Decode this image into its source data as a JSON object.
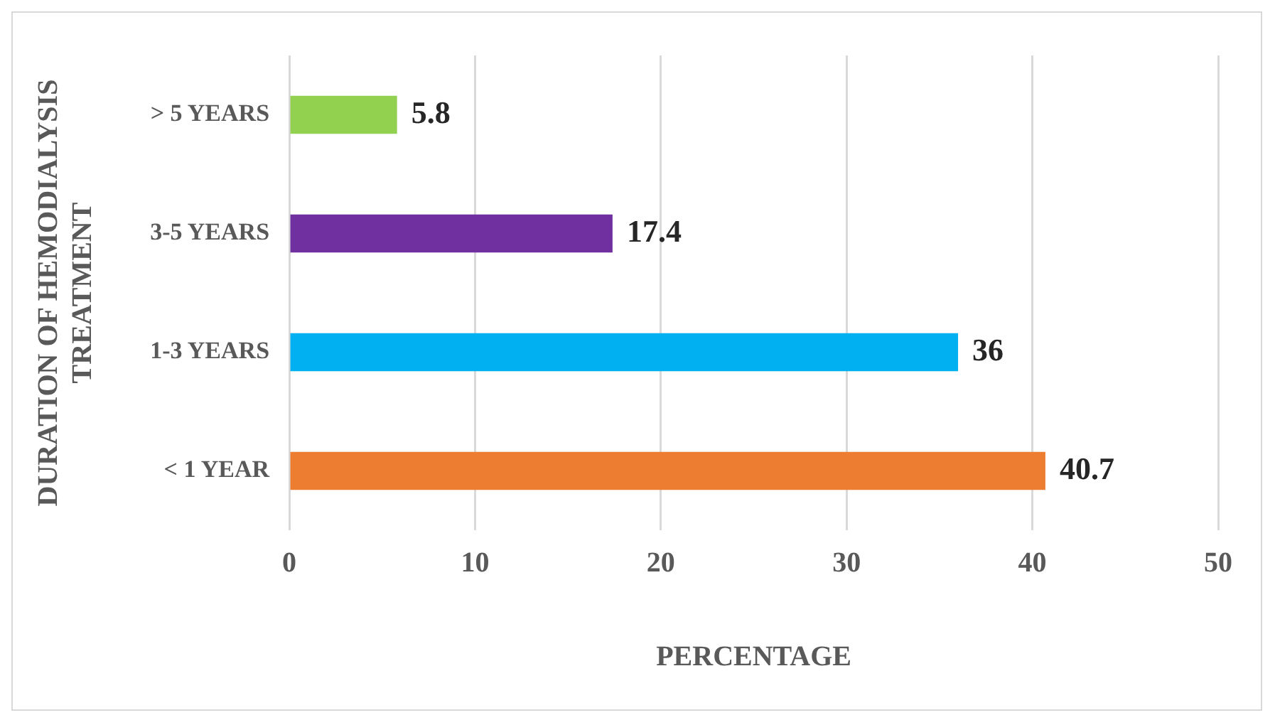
{
  "chart_data": {
    "type": "bar",
    "orientation": "horizontal",
    "xlabel": "PERCENTAGE",
    "ylabel": "DURATION OF HEMODIALYSIS TREATMENT",
    "categories": [
      "> 5 YEARS",
      "3-5 YEARS",
      "1-3 YEARS",
      "< 1 YEAR"
    ],
    "values": [
      5.8,
      17.4,
      36,
      40.7
    ],
    "colors": [
      "#92d050",
      "#7030a0",
      "#00b0f0",
      "#ed7d31"
    ],
    "xlim": [
      0,
      50
    ],
    "xticks": [
      0,
      10,
      20,
      30,
      40,
      50
    ],
    "grid": "x",
    "data_labels": true,
    "legend": false
  }
}
